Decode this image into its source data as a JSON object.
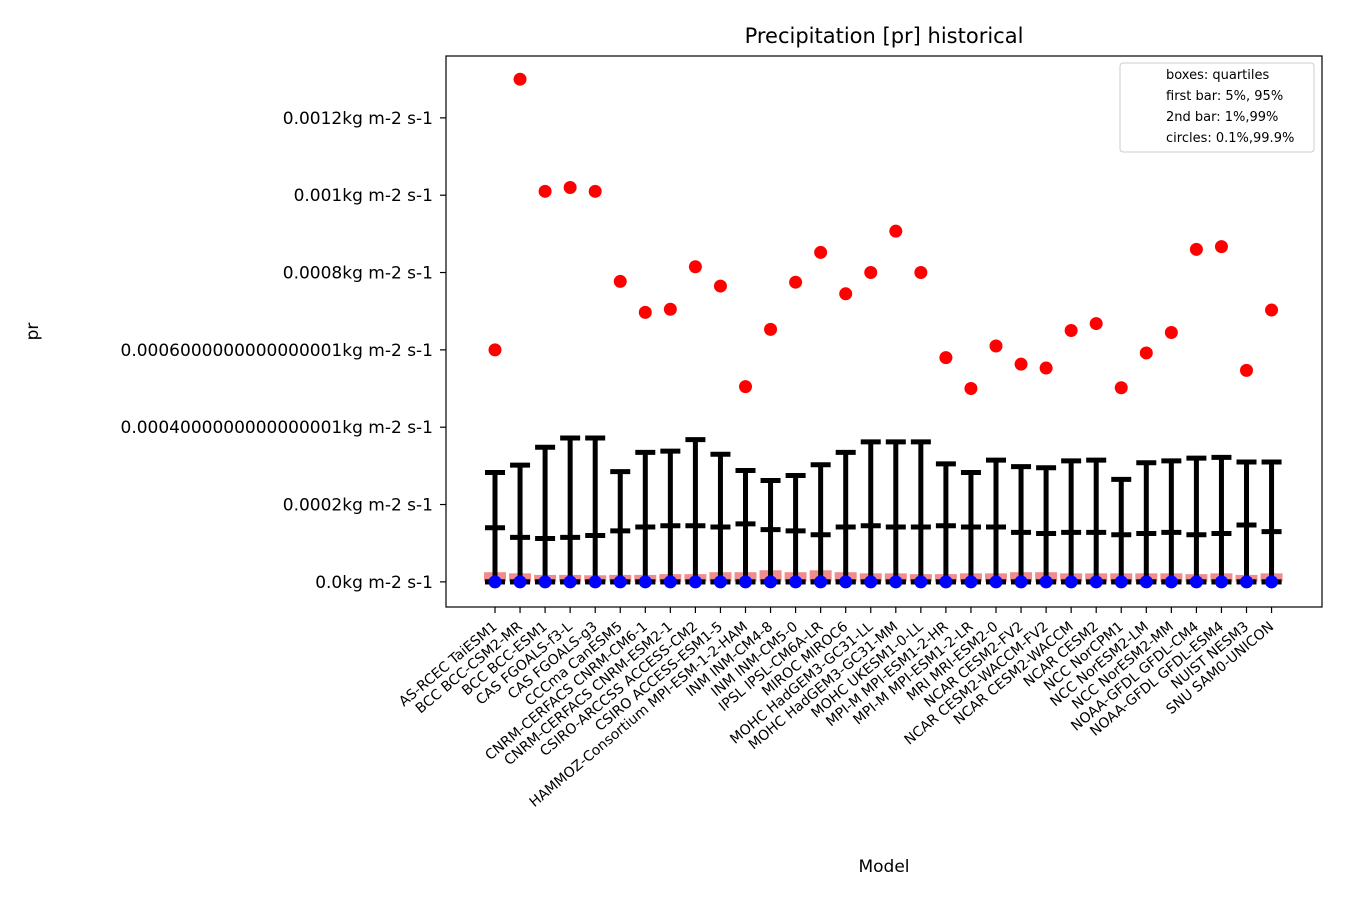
{
  "chart_data": {
    "type": "box",
    "title": "Precipitation [pr] historical",
    "xlabel": "Model",
    "ylabel": "pr",
    "ylim": [
      -6.5e-05,
      0.00136
    ],
    "yticks": [
      {
        "value": 0.0,
        "label": "0.0kg m-2 s-1"
      },
      {
        "value": 0.0002,
        "label": "0.0002kg m-2 s-1"
      },
      {
        "value": 0.0004,
        "label": "0.0004000000000000001kg m-2 s-1"
      },
      {
        "value": 0.0006,
        "label": "0.0006000000000000001kg m-2 s-1"
      },
      {
        "value": 0.0008,
        "label": "0.0008kg m-2 s-1"
      },
      {
        "value": 0.001,
        "label": "0.001kg m-2 s-1"
      },
      {
        "value": 0.0012,
        "label": "0.0012kg m-2 s-1"
      }
    ],
    "legend": {
      "placement": "top-right",
      "entries": [
        "boxes: quartiles",
        "first bar: 5%, 95%",
        "2nd bar: 1%,99%",
        "circles: 0.1%,99.9%"
      ]
    },
    "colors": {
      "box": "#f08080",
      "whisker": "#000000",
      "high_circle": "#ff0000",
      "low_circle": "#0000ff"
    },
    "models": [
      "AS-RCEC TaiESM1",
      "BCC BCC-CSM2-MR",
      "BCC BCC-ESM1",
      "CAS FGOALS-f3-L",
      "CAS FGOALS-g3",
      "CCCma CanESM5",
      "CNRM-CERFACS CNRM-CM6-1",
      "CNRM-CERFACS CNRM-ESM2-1",
      "CSIRO-ARCCSS ACCESS-CM2",
      "CSIRO ACCESS-ESM1-5",
      "HAMMOZ-Consortium MPI-ESM-1-2-HAM",
      "INM INM-CM4-8",
      "INM INM-CM5-0",
      "IPSL IPSL-CM6A-LR",
      "MIROC MIROC6",
      "MOHC HadGEM3-GC31-LL",
      "MOHC HadGEM3-GC31-MM",
      "MOHC UKESM1-0-LL",
      "MPI-M MPI-ESM1-2-HR",
      "MPI-M MPI-ESM1-2-LR",
      "MRI MRI-ESM2-0",
      "NCAR CESM2-FV2",
      "NCAR CESM2-WACCM-FV2",
      "NCAR CESM2-WACCM",
      "NCAR CESM2",
      "NCC NorCPM1",
      "NCC NorESM2-LM",
      "NCC NorESM2-MM",
      "NOAA-GFDL GFDL-CM4",
      "NOAA-GFDL GFDL-ESM4",
      "NUIST NESM3",
      "SNU SAM0-UNICON"
    ],
    "series": {
      "q1": [
        1e-06,
        1e-06,
        8e-07,
        8e-07,
        8e-07,
        8e-07,
        8e-07,
        8e-07,
        8e-07,
        1e-06,
        1e-06,
        1.2e-06,
        1.2e-06,
        1.2e-06,
        1e-06,
        8e-07,
        8e-07,
        8e-07,
        8e-07,
        8e-07,
        8e-07,
        1e-06,
        1e-06,
        8e-07,
        8e-07,
        8e-07,
        8e-07,
        8e-07,
        8e-07,
        8e-07,
        8e-07,
        8e-07
      ],
      "q3": [
        2.5e-05,
        2.2e-05,
        1.8e-05,
        1.8e-05,
        1.7e-05,
        1.8e-05,
        1.8e-05,
        2e-05,
        2e-05,
        2.5e-05,
        2.5e-05,
        3e-05,
        2.5e-05,
        3e-05,
        2.5e-05,
        2.2e-05,
        2.2e-05,
        2e-05,
        2e-05,
        2.2e-05,
        2.2e-05,
        2.5e-05,
        2.5e-05,
        2.2e-05,
        2.2e-05,
        2.2e-05,
        2.2e-05,
        2.2e-05,
        2e-05,
        2.2e-05,
        1.8e-05,
        2.2e-05
      ],
      "p5": [
        0.0,
        0.0,
        0.0,
        0.0,
        0.0,
        0.0,
        0.0,
        0.0,
        0.0,
        0.0,
        0.0,
        0.0,
        0.0,
        0.0,
        0.0,
        0.0,
        0.0,
        0.0,
        0.0,
        0.0,
        0.0,
        0.0,
        0.0,
        0.0,
        0.0,
        0.0,
        0.0,
        0.0,
        0.0,
        0.0,
        0.0,
        0.0
      ],
      "p95": [
        0.00014,
        0.000115,
        0.000112,
        0.000115,
        0.00012,
        0.000132,
        0.000142,
        0.000145,
        0.000145,
        0.000142,
        0.00015,
        0.000135,
        0.000132,
        0.000122,
        0.000142,
        0.000145,
        0.000142,
        0.000142,
        0.000145,
        0.000142,
        0.000142,
        0.000128,
        0.000125,
        0.000128,
        0.000128,
        0.000122,
        0.000125,
        0.000128,
        0.000122,
        0.000125,
        0.000147,
        0.00013
      ],
      "p1": [
        0.0,
        0.0,
        0.0,
        0.0,
        0.0,
        0.0,
        0.0,
        0.0,
        0.0,
        0.0,
        0.0,
        0.0,
        0.0,
        0.0,
        0.0,
        0.0,
        0.0,
        0.0,
        0.0,
        0.0,
        0.0,
        0.0,
        0.0,
        0.0,
        0.0,
        0.0,
        0.0,
        0.0,
        0.0,
        0.0,
        0.0,
        0.0
      ],
      "p99": [
        0.000283,
        0.000302,
        0.000348,
        0.000372,
        0.000372,
        0.000285,
        0.000335,
        0.000338,
        0.000368,
        0.00033,
        0.000288,
        0.000262,
        0.000275,
        0.000303,
        0.000335,
        0.000362,
        0.000362,
        0.000362,
        0.000305,
        0.000283,
        0.000315,
        0.000298,
        0.000295,
        0.000313,
        0.000315,
        0.000265,
        0.000308,
        0.000313,
        0.00032,
        0.000322,
        0.00031,
        0.00031
      ],
      "p0_1": [
        0.0,
        0.0,
        0.0,
        0.0,
        0.0,
        0.0,
        0.0,
        0.0,
        0.0,
        0.0,
        0.0,
        0.0,
        0.0,
        0.0,
        0.0,
        0.0,
        0.0,
        0.0,
        0.0,
        0.0,
        0.0,
        0.0,
        0.0,
        0.0,
        0.0,
        0.0,
        0.0,
        0.0,
        0.0,
        0.0,
        0.0,
        0.0
      ],
      "p99_9": [
        0.0006,
        0.0013,
        0.00101,
        0.00102,
        0.00101,
        0.000777,
        0.000697,
        0.000705,
        0.000815,
        0.000765,
        0.000505,
        0.000653,
        0.000775,
        0.000852,
        0.000745,
        0.0008,
        0.000907,
        0.0008,
        0.00058,
        0.0005,
        0.00061,
        0.000563,
        0.000553,
        0.00065,
        0.000668,
        0.000502,
        0.000592,
        0.000645,
        0.00086,
        0.000867,
        0.000547,
        0.000703
      ]
    }
  }
}
